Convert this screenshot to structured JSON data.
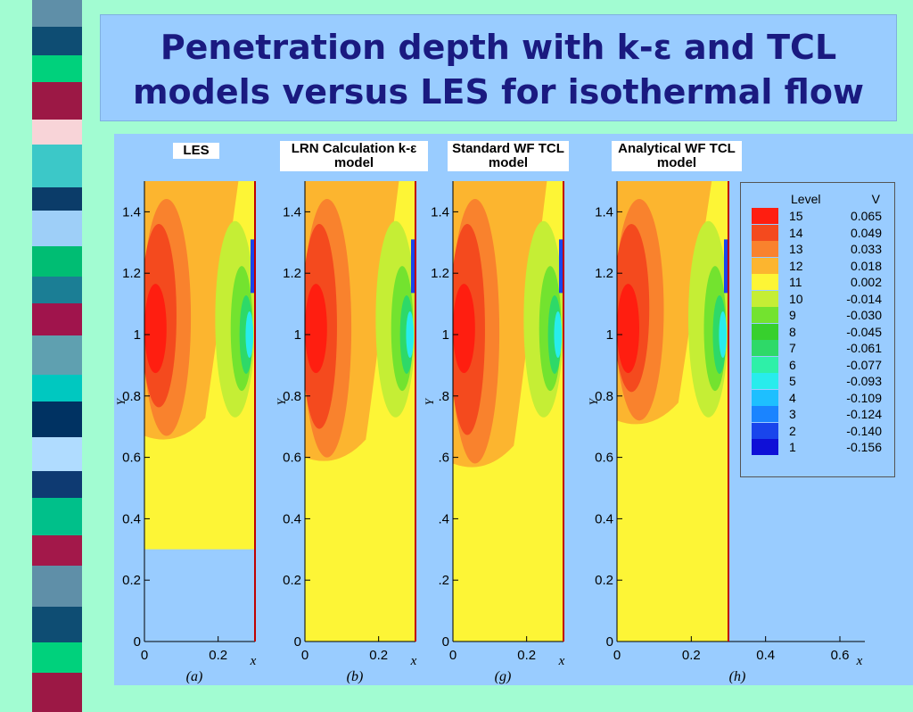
{
  "slide": {
    "title_line1": "Penetration depth with k-ε and TCL",
    "title_line2": "models versus LES for isothermal flow"
  },
  "colors": {
    "background": "#a2fcd2",
    "title_box": "#99ccff",
    "title_text": "#1a1a80",
    "stripes": [
      "#5f8fa8",
      "#0e4d73",
      "#00d17c",
      "#9c1845",
      "#f8d4d8",
      "#3cc8c8",
      "#0b3c69",
      "#9ecff8",
      "#00bd73",
      "#1b7e95",
      "#a0144c",
      "#5fa0b0",
      "#00c8c0",
      "#003262",
      "#b0dcff",
      "#0e3a72",
      "#00c08a",
      "#a3184a"
    ]
  },
  "legend": {
    "header_level": "Level",
    "header_value": "V",
    "entries": [
      {
        "level": "15",
        "value": "0.065",
        "color": "#ff1e10"
      },
      {
        "level": "14",
        "value": "0.049",
        "color": "#f44a1e"
      },
      {
        "level": "13",
        "value": "0.033",
        "color": "#f9822d"
      },
      {
        "level": "12",
        "value": "0.018",
        "color": "#fcb52f"
      },
      {
        "level": "11",
        "value": "0.002",
        "color": "#fdf536"
      },
      {
        "level": "10",
        "value": "-0.014",
        "color": "#c5ee35"
      },
      {
        "level": "9",
        "value": "-0.030",
        "color": "#73e32f"
      },
      {
        "level": "8",
        "value": "-0.045",
        "color": "#37d02d"
      },
      {
        "level": "7",
        "value": "-0.061",
        "color": "#2ed968"
      },
      {
        "level": "6",
        "value": "-0.077",
        "color": "#2ef0a8"
      },
      {
        "level": "5",
        "value": "-0.093",
        "color": "#28ecec"
      },
      {
        "level": "4",
        "value": "-0.109",
        "color": "#1ebfff"
      },
      {
        "level": "3",
        "value": "-0.124",
        "color": "#1a84ff"
      },
      {
        "level": "2",
        "value": "-0.140",
        "color": "#1945ec"
      },
      {
        "level": "1",
        "value": "-0.156",
        "color": "#0f10d7"
      }
    ]
  },
  "chart_data": [
    {
      "type": "heatmap",
      "title": "LES",
      "xlabel": "x",
      "ylabel": "Y",
      "xlim": [
        0,
        0.3
      ],
      "ylim": [
        0,
        1.5
      ],
      "x_ticks": [
        "0",
        "0.2"
      ],
      "y_ticks": [
        "0",
        "0.2",
        "0.4",
        "0.6",
        "0.8",
        "1",
        "1.2",
        "1.4"
      ],
      "domain_y_min": 0.3,
      "penetration_depth": 0.67,
      "panel_label": "(a)"
    },
    {
      "type": "heatmap",
      "title": "LRN Calculation k-ε model",
      "xlabel": "x",
      "ylabel": "Y",
      "xlim": [
        0,
        0.3
      ],
      "ylim": [
        0,
        1.5
      ],
      "x_ticks": [
        "0",
        "0.2"
      ],
      "y_ticks": [
        "0",
        "0.2",
        "0.4",
        "0.6",
        "0.8",
        "1",
        "1.2",
        "1.4"
      ],
      "domain_y_min": 0,
      "penetration_depth": 0.6,
      "panel_label": "(b)"
    },
    {
      "type": "heatmap",
      "title": "Standard WF TCL model",
      "xlabel": "x",
      "ylabel": "Y",
      "xlim": [
        0,
        0.3
      ],
      "ylim": [
        0,
        1.5
      ],
      "x_ticks": [
        "0",
        "0.2"
      ],
      "y_ticks": [
        "0",
        ".2",
        ".4",
        ".6",
        ".8",
        "1",
        "1.2",
        "1.4"
      ],
      "domain_y_min": 0,
      "penetration_depth": 0.58,
      "panel_label": "(g)"
    },
    {
      "type": "heatmap",
      "title": "Analytical WF TCL model",
      "xlabel": "x",
      "ylabel": "Y",
      "xlim": [
        0,
        0.65
      ],
      "ylim": [
        0,
        1.5
      ],
      "x_ticks": [
        "0",
        "0.2",
        "0.4",
        "0.6"
      ],
      "y_ticks": [
        "0",
        "0.2",
        "0.4",
        "0.6",
        "0.8",
        "1",
        "1.2",
        "1.4"
      ],
      "domain_y_min": 0,
      "domain_x_max": 0.3,
      "penetration_depth": 0.72,
      "panel_label": "(h)"
    }
  ]
}
